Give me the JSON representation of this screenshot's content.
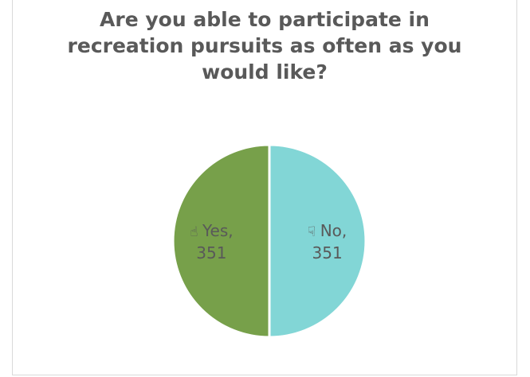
{
  "chart_data": {
    "type": "pie",
    "title_lines": [
      "Are you able to participate in",
      "recreation pursuits as often as you",
      "would like?"
    ],
    "slices": [
      {
        "label": "Yes",
        "value": 351,
        "color": "#77a04a",
        "icon": "thumbs-up-icon"
      },
      {
        "label": "No",
        "value": 351,
        "color": "#82d6d6",
        "icon": "thumbs-down-icon"
      }
    ],
    "legend": "none",
    "data_labels": "inside"
  }
}
